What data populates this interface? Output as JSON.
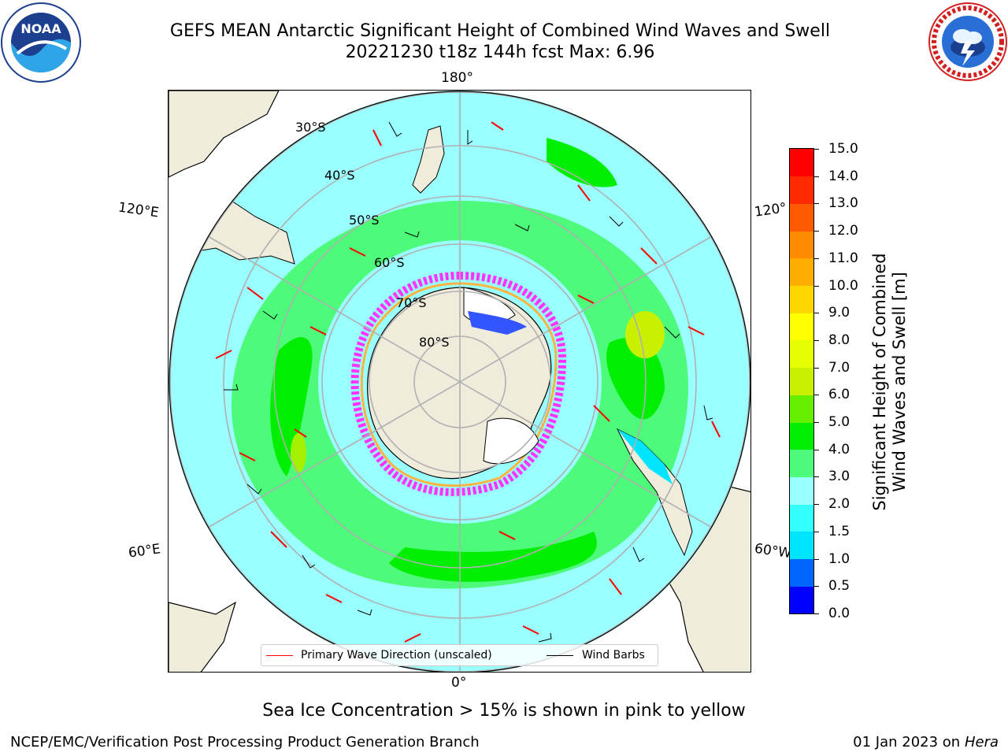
{
  "title": {
    "line1": "GEFS MEAN Antarctic Significant Height of Combined Wind Waves and Swell",
    "line2": "20221230 t18z 144h fcst   Max: 6.96"
  },
  "logos": {
    "left": {
      "icon": "noaa-logo",
      "text": "NOAA"
    },
    "right": {
      "icon": "nws-logo",
      "text": "NATIONAL WEATHER SERVICE"
    }
  },
  "map": {
    "projection": "south-polar-stereographic",
    "longitude_labels": {
      "top": "180°",
      "bottom": "0°",
      "upper_left": "120°E",
      "lower_left": "60°E",
      "upper_right": "120°",
      "lower_right": "60°W"
    },
    "latitude_labels": [
      "30°S",
      "40°S",
      "50°S",
      "60°S",
      "70°S",
      "80°S"
    ],
    "land_color": "#efecdc",
    "grid_color": "#b0b0b0"
  },
  "legend": {
    "items": [
      {
        "label": "Primary Wave Direction (unscaled)",
        "color": "#ff0000"
      },
      {
        "label": "Wind Barbs",
        "color": "#000000"
      }
    ]
  },
  "colorbar": {
    "title_line1": "Significant Height of Combined",
    "title_line2": "Wind Waves and Swell [m]",
    "tick_labels": [
      "0.0",
      "0.5",
      "1.0",
      "1.5",
      "2.0",
      "3.0",
      "4.0",
      "5.0",
      "6.0",
      "7.0",
      "8.0",
      "9.0",
      "10.0",
      "11.0",
      "12.0",
      "13.0",
      "14.0",
      "15.0"
    ],
    "colors": [
      "#0000ff",
      "#0066ff",
      "#00e5ff",
      "#33ffff",
      "#99ffff",
      "#4dfa7a",
      "#00ef00",
      "#66f000",
      "#c8f000",
      "#e5ff00",
      "#ffff00",
      "#ffd700",
      "#ffae00",
      "#ff8c00",
      "#ff5a00",
      "#ff2a00",
      "#ff0000"
    ]
  },
  "sea_ice_note": "Sea Ice Concentration > 15% is shown in pink to yellow",
  "footer": {
    "left": "NCEP/EMC/Verification Post Processing Product Generation Branch",
    "date": "01 Jan 2023 on ",
    "machine": "Hera"
  }
}
